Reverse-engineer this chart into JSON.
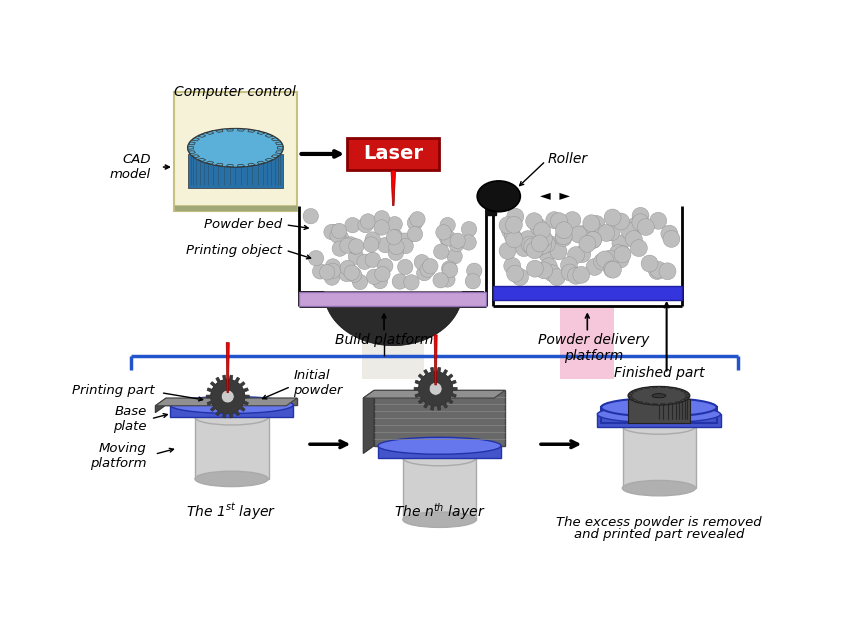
{
  "bg_color": "#ffffff",
  "labels": {
    "computer_control": "Computer control",
    "cad_model": "CAD\nmodel",
    "laser": "Laser",
    "roller": "Roller",
    "powder_bed": "Powder bed",
    "printing_object": "Printing object",
    "build_platform": "Build platform",
    "powder_delivery": "Powder delivery\nplatform",
    "printing_part": "Printing part",
    "initial_powder": "Initial\npowder",
    "base_plate": "Base\nplate",
    "moving_platform": "Moving\nplatform",
    "finished_part": "Finished part",
    "excess_text": "The excess powder is removed\nand printed part revealed"
  },
  "colors": {
    "powder_gray": "#bebebe",
    "powder_dark": "#2a2a2a",
    "laser_red": "#cc0000",
    "laser_box": "#cc1111",
    "platform_purple": "#c8a0d8",
    "platform_blue": "#3535dd",
    "cad_bg": "#f5f2d8",
    "cad_border": "#c8c080",
    "gear_blue": "#4a9dcc",
    "gear_dark": "#3a3a3a",
    "roller_black": "#111111",
    "shaft_light": "#e8e8e8",
    "shaft_pink": "#f5c8e0",
    "stage_gray": "#686868",
    "stage_gray_light": "#909090",
    "stage_blue": "#4455cc",
    "stage_blue_light": "#6677ee",
    "cyl_gray": "#d0d0d0",
    "cyl_dark": "#b0b0b0"
  }
}
